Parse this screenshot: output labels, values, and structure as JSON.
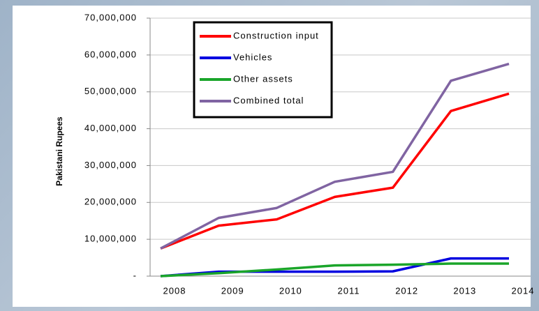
{
  "chart_data": {
    "type": "line",
    "y_label": "Pakistani Rupees",
    "categories": [
      "2008",
      "2009",
      "2010",
      "2011",
      "2012",
      "2013",
      "2014"
    ],
    "series": [
      {
        "name": "Construction input",
        "color": "#ff0000",
        "values": [
          7500000,
          13700000,
          15400000,
          21500000,
          24000000,
          44800000,
          49500000
        ]
      },
      {
        "name": "Vehicles",
        "color": "#0000e0",
        "values": [
          0,
          1200000,
          1200000,
          1200000,
          1300000,
          4800000,
          4800000
        ]
      },
      {
        "name": "Other assets",
        "color": "#1aa52a",
        "values": [
          0,
          800000,
          1800000,
          2900000,
          3100000,
          3400000,
          3400000
        ]
      },
      {
        "name": "Combined total",
        "color": "#8064a2",
        "values": [
          7500000,
          15800000,
          18500000,
          25600000,
          28300000,
          53000000,
          57600000
        ]
      }
    ],
    "ylim": [
      0,
      70000000
    ],
    "yticks": [
      {
        "value": 0,
        "label": "-"
      },
      {
        "value": 10000000,
        "label": "10,000,000"
      },
      {
        "value": 20000000,
        "label": "20,000,000"
      },
      {
        "value": 30000000,
        "label": "30,000,000"
      },
      {
        "value": 40000000,
        "label": "40,000,000"
      },
      {
        "value": 50000000,
        "label": "50,000,000"
      },
      {
        "value": 60000000,
        "label": "60,000,000"
      },
      {
        "value": 70000000,
        "label": "70,000,000"
      }
    ],
    "grid": true,
    "legend": "upper left"
  }
}
